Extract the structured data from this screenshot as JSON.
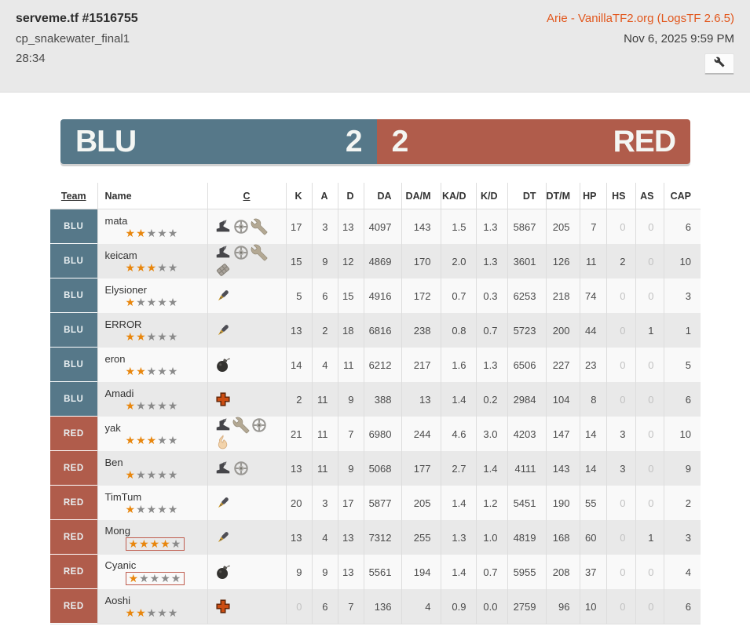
{
  "header": {
    "title": "serveme.tf #1516755",
    "map": "cp_snakewater_final1",
    "duration": "28:34",
    "uploader": "Arie - VanillaTF2.org (LogsTF 2.6.5)",
    "date": "Nov 6, 2025 9:59 PM",
    "wrench_icon": "wrench"
  },
  "scoreboard": {
    "blu_label": "BLU",
    "blu_score": "2",
    "red_label": "RED",
    "red_score": "2"
  },
  "table": {
    "columns": [
      "Team",
      "Name",
      "C",
      "K",
      "A",
      "D",
      "DA",
      "DA/M",
      "KA/D",
      "K/D",
      "DT",
      "DT/M",
      "HP",
      "HS",
      "AS",
      "CAP"
    ],
    "players": [
      {
        "team": "BLU",
        "name": "mata",
        "stars": 2,
        "stars_boxed": false,
        "classes": [
          "scout",
          "sniper",
          "engineer"
        ],
        "k": "17",
        "a": "3",
        "d": "13",
        "da": "4097",
        "dam": "143",
        "kad": "1.5",
        "kd": "1.3",
        "dt": "5867",
        "dtm": "205",
        "hp": "7",
        "hs": "0",
        "as": "0",
        "cap": "6"
      },
      {
        "team": "BLU",
        "name": "keicam",
        "stars": 3,
        "stars_boxed": false,
        "classes": [
          "scout",
          "sniper",
          "engineer",
          "heavy"
        ],
        "k": "15",
        "a": "9",
        "d": "12",
        "da": "4869",
        "dam": "170",
        "kad": "2.0",
        "kd": "1.3",
        "dt": "3601",
        "dtm": "126",
        "hp": "11",
        "hs": "2",
        "as": "0",
        "cap": "10"
      },
      {
        "team": "BLU",
        "name": "Elysioner",
        "stars": 1,
        "stars_boxed": false,
        "classes": [
          "soldier"
        ],
        "k": "5",
        "a": "6",
        "d": "15",
        "da": "4916",
        "dam": "172",
        "kad": "0.7",
        "kd": "0.3",
        "dt": "6253",
        "dtm": "218",
        "hp": "74",
        "hs": "0",
        "as": "0",
        "cap": "3"
      },
      {
        "team": "BLU",
        "name": "ERROR",
        "stars": 2,
        "stars_boxed": false,
        "classes": [
          "soldier"
        ],
        "k": "13",
        "a": "2",
        "d": "18",
        "da": "6816",
        "dam": "238",
        "kad": "0.8",
        "kd": "0.7",
        "dt": "5723",
        "dtm": "200",
        "hp": "44",
        "hs": "0",
        "as": "1",
        "cap": "1"
      },
      {
        "team": "BLU",
        "name": "eron",
        "stars": 2,
        "stars_boxed": false,
        "classes": [
          "demoman"
        ],
        "k": "14",
        "a": "4",
        "d": "11",
        "da": "6212",
        "dam": "217",
        "kad": "1.6",
        "kd": "1.3",
        "dt": "6506",
        "dtm": "227",
        "hp": "23",
        "hs": "0",
        "as": "0",
        "cap": "5"
      },
      {
        "team": "BLU",
        "name": "Amadi",
        "stars": 1,
        "stars_boxed": false,
        "classes": [
          "medic"
        ],
        "k": "2",
        "a": "11",
        "d": "9",
        "da": "388",
        "dam": "13",
        "kad": "1.4",
        "kd": "0.2",
        "dt": "2984",
        "dtm": "104",
        "hp": "8",
        "hs": "0",
        "as": "0",
        "cap": "6"
      },
      {
        "team": "RED",
        "name": "yak",
        "stars": 3,
        "stars_boxed": false,
        "classes": [
          "scout",
          "engineer",
          "sniper",
          "pyro"
        ],
        "k": "21",
        "a": "11",
        "d": "7",
        "da": "6980",
        "dam": "244",
        "kad": "4.6",
        "kd": "3.0",
        "dt": "4203",
        "dtm": "147",
        "hp": "14",
        "hs": "3",
        "as": "0",
        "cap": "10"
      },
      {
        "team": "RED",
        "name": "Ben",
        "stars": 1,
        "stars_boxed": false,
        "classes": [
          "scout",
          "sniper"
        ],
        "k": "13",
        "a": "11",
        "d": "9",
        "da": "5068",
        "dam": "177",
        "kad": "2.7",
        "kd": "1.4",
        "dt": "4111",
        "dtm": "143",
        "hp": "14",
        "hs": "3",
        "as": "0",
        "cap": "9"
      },
      {
        "team": "RED",
        "name": "TimTum",
        "stars": 1,
        "stars_boxed": false,
        "classes": [
          "soldier"
        ],
        "k": "20",
        "a": "3",
        "d": "17",
        "da": "5877",
        "dam": "205",
        "kad": "1.4",
        "kd": "1.2",
        "dt": "5451",
        "dtm": "190",
        "hp": "55",
        "hs": "0",
        "as": "0",
        "cap": "2"
      },
      {
        "team": "RED",
        "name": "Mong",
        "stars": 4,
        "stars_boxed": true,
        "classes": [
          "soldier"
        ],
        "k": "13",
        "a": "4",
        "d": "13",
        "da": "7312",
        "dam": "255",
        "kad": "1.3",
        "kd": "1.0",
        "dt": "4819",
        "dtm": "168",
        "hp": "60",
        "hs": "0",
        "as": "1",
        "cap": "3"
      },
      {
        "team": "RED",
        "name": "Cyanic",
        "stars": 1,
        "stars_boxed": true,
        "classes": [
          "demoman"
        ],
        "k": "9",
        "a": "9",
        "d": "13",
        "da": "5561",
        "dam": "194",
        "kad": "1.4",
        "kd": "0.7",
        "dt": "5955",
        "dtm": "208",
        "hp": "37",
        "hs": "0",
        "as": "0",
        "cap": "4"
      },
      {
        "team": "RED",
        "name": "Aoshi",
        "stars": 2,
        "stars_boxed": false,
        "classes": [
          "medic"
        ],
        "k": "0",
        "a": "6",
        "d": "7",
        "da": "136",
        "dam": "4",
        "kad": "0.9",
        "kd": "0.0",
        "dt": "2759",
        "dtm": "96",
        "hp": "10",
        "hs": "0",
        "as": "0",
        "cap": "6"
      }
    ]
  },
  "colors": {
    "blu": "#567889",
    "red": "#b05c4b",
    "link": "#e2571d",
    "star_on": "#e8860d",
    "star_off": "#8a8a8a",
    "boxed_border": "#bf5b4d",
    "stripe_odd": "#f9f9f9",
    "stripe_even": "#e9e9e9",
    "header_bg": "#e9e9e9",
    "zero": "#c2c2c2",
    "text": "#444444"
  }
}
